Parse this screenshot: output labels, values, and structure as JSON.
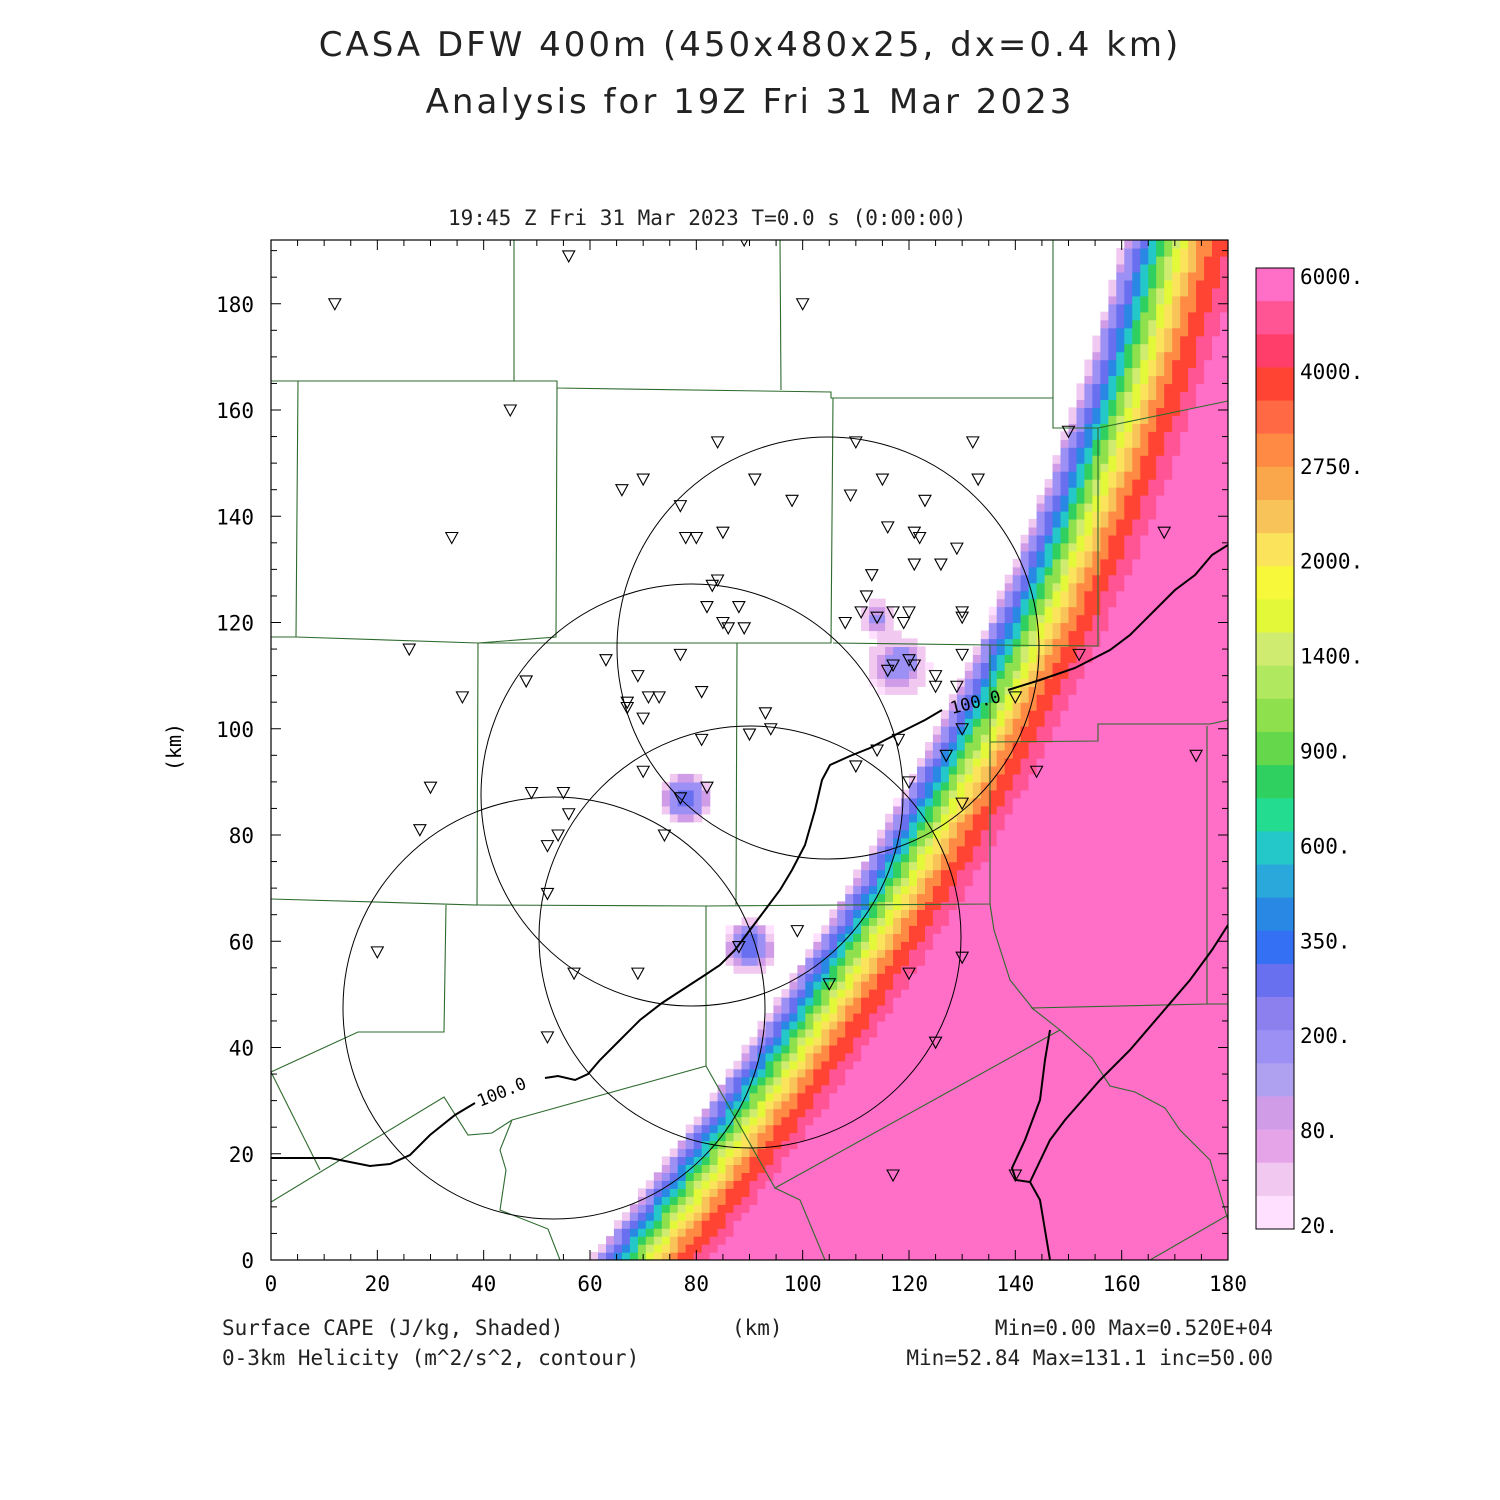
{
  "title": {
    "line1": "CASA DFW 400m (450x480x25, dx=0.4 km)",
    "line2": "Analysis for 19Z Fri 31 Mar 2023"
  },
  "subtitle": "19:45 Z Fri 31 Mar 2023   T=0.0 s (0:00:00)",
  "axes": {
    "xlabel": "(km)",
    "ylabel": "(km)",
    "xticks": [
      "0",
      "20",
      "40",
      "60",
      "80",
      "100",
      "120",
      "140",
      "160",
      "180"
    ],
    "yticks": [
      "0",
      "20",
      "40",
      "60",
      "80",
      "100",
      "120",
      "140",
      "160",
      "180"
    ],
    "xlim": [
      0,
      180
    ],
    "ylim": [
      0,
      192
    ]
  },
  "footer": {
    "left1": "Surface CAPE (J/kg, Shaded)",
    "left2": "0-3km Helicity (m^2/s^2, contour)",
    "right1": "Min=0.00 Max=0.520E+04",
    "right2": "Min=52.84 Max=131.1 inc=50.00"
  },
  "contour_label": "100.0",
  "colorbar": {
    "labels": [
      "6000.",
      "4000.",
      "2750.",
      "2000.",
      "1400.",
      "900.",
      "600.",
      "350.",
      "200.",
      "80.",
      "20."
    ],
    "colors": [
      "#ff6ec7",
      "#ff5595",
      "#ff3e6a",
      "#ff4433",
      "#ff6a45",
      "#ff8a44",
      "#faa64a",
      "#f8c45a",
      "#fce35c",
      "#f8f83a",
      "#e4f83a",
      "#d0ec70",
      "#b0e860",
      "#8ee04c",
      "#64d84a",
      "#30d060",
      "#24dc90",
      "#24c8c8",
      "#2aa8dc",
      "#2888e4",
      "#3470f4",
      "#6870f0",
      "#8c80ee",
      "#9c90f4",
      "#b0a0f0",
      "#d09ce8",
      "#e6a4e8",
      "#f0c8f0",
      "#ffe0ff"
    ]
  },
  "cape_color_bands": [
    {
      "min": 0,
      "color": "#ffe0ff"
    },
    {
      "min": 20,
      "color": "#f0c8f0"
    },
    {
      "min": 50,
      "color": "#d09ce8"
    },
    {
      "min": 80,
      "color": "#9c90f4"
    },
    {
      "min": 200,
      "color": "#6870f0"
    },
    {
      "min": 350,
      "color": "#2888e4"
    },
    {
      "min": 500,
      "color": "#24c8c8"
    },
    {
      "min": 700,
      "color": "#30d060"
    },
    {
      "min": 900,
      "color": "#8ee04c"
    },
    {
      "min": 1200,
      "color": "#d0ec70"
    },
    {
      "min": 1400,
      "color": "#e4f83a"
    },
    {
      "min": 1700,
      "color": "#fce35c"
    },
    {
      "min": 2000,
      "color": "#f8c45a"
    },
    {
      "min": 2400,
      "color": "#ff8a44"
    },
    {
      "min": 3000,
      "color": "#ff4433"
    },
    {
      "min": 4000,
      "color": "#ff5595"
    },
    {
      "min": 5000,
      "color": "#ff6ec7"
    }
  ],
  "stations": [
    [
      12,
      180
    ],
    [
      56,
      189
    ],
    [
      89,
      192
    ],
    [
      100,
      180
    ],
    [
      45,
      160
    ],
    [
      34,
      136
    ],
    [
      66,
      145
    ],
    [
      70,
      147
    ],
    [
      77,
      142
    ],
    [
      84,
      154
    ],
    [
      91,
      147
    ],
    [
      98,
      143
    ],
    [
      110,
      154
    ],
    [
      109,
      144
    ],
    [
      115,
      147
    ],
    [
      116,
      138
    ],
    [
      123,
      143
    ],
    [
      132,
      154
    ],
    [
      133,
      147
    ],
    [
      78,
      136
    ],
    [
      80,
      136
    ],
    [
      85,
      137
    ],
    [
      83,
      127
    ],
    [
      84,
      128
    ],
    [
      82,
      123
    ],
    [
      88,
      123
    ],
    [
      85,
      120
    ],
    [
      86,
      119
    ],
    [
      89,
      119
    ],
    [
      108,
      120
    ],
    [
      111,
      122
    ],
    [
      112,
      125
    ],
    [
      113,
      129
    ],
    [
      114,
      121
    ],
    [
      117,
      122
    ],
    [
      119,
      120
    ],
    [
      120,
      122
    ],
    [
      121,
      131
    ],
    [
      121,
      137
    ],
    [
      122,
      136
    ],
    [
      126,
      131
    ],
    [
      129,
      134
    ],
    [
      130,
      121
    ],
    [
      130,
      122
    ],
    [
      26,
      115
    ],
    [
      36,
      106
    ],
    [
      48,
      109
    ],
    [
      63,
      113
    ],
    [
      67,
      104
    ],
    [
      67,
      105
    ],
    [
      69,
      110
    ],
    [
      70,
      102
    ],
    [
      71,
      106
    ],
    [
      73,
      106
    ],
    [
      77,
      114
    ],
    [
      81,
      107
    ],
    [
      93,
      103
    ],
    [
      94,
      100
    ],
    [
      90,
      99
    ],
    [
      81,
      98
    ],
    [
      82,
      89
    ],
    [
      70,
      92
    ],
    [
      74,
      80
    ],
    [
      30,
      89
    ],
    [
      28,
      81
    ],
    [
      49,
      88
    ],
    [
      55,
      88
    ],
    [
      56,
      84
    ],
    [
      54,
      80
    ],
    [
      52,
      78
    ],
    [
      52,
      69
    ],
    [
      77,
      87
    ],
    [
      88,
      59
    ],
    [
      99,
      62
    ],
    [
      57,
      54
    ],
    [
      69,
      54
    ],
    [
      52,
      42
    ],
    [
      105,
      52
    ],
    [
      117,
      112
    ],
    [
      116,
      111
    ],
    [
      120,
      113
    ],
    [
      121,
      112
    ],
    [
      125,
      110
    ],
    [
      125,
      108
    ],
    [
      129,
      108
    ],
    [
      130,
      114
    ],
    [
      130,
      100
    ],
    [
      127,
      95
    ],
    [
      114,
      96
    ],
    [
      118,
      98
    ],
    [
      120,
      90
    ],
    [
      110,
      93
    ],
    [
      130,
      86
    ],
    [
      20,
      58
    ],
    [
      130,
      57
    ],
    [
      120,
      54
    ],
    [
      125,
      41
    ],
    [
      140,
      106
    ],
    [
      144,
      92
    ],
    [
      150,
      156
    ],
    [
      152,
      114
    ],
    [
      168,
      137
    ],
    [
      174,
      95
    ],
    [
      117,
      16
    ],
    [
      140,
      16
    ]
  ]
}
